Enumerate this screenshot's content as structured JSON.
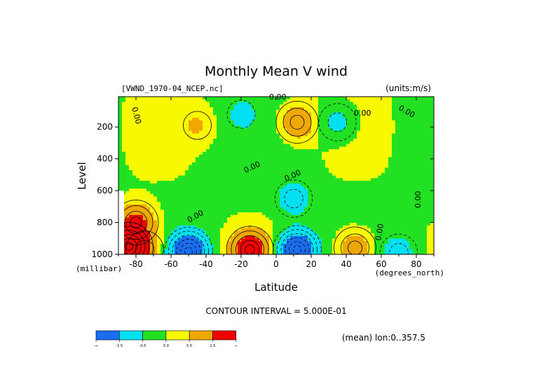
{
  "chart_data": {
    "type": "heatmap",
    "title": "Monthly Mean V wind",
    "dataset": "[VWND_1970-04_NCEP.nc]",
    "units": "(units:m/s)",
    "xlabel": "Latitude",
    "xunits": "(degrees_north)",
    "ylabel": "Level",
    "yunits": "(millibar)",
    "x_ticks": [
      -80,
      -60,
      -40,
      -20,
      0,
      20,
      40,
      60,
      80
    ],
    "x_tick_labels": [
      "-80",
      "-60",
      "-40",
      "-20",
      "0",
      "20",
      "40",
      "60",
      "80"
    ],
    "y_ticks": [
      200,
      400,
      600,
      800,
      1000
    ],
    "y_tick_labels": [
      "200",
      "400",
      "600",
      "800",
      "1000"
    ],
    "xlim": [
      -90,
      90
    ],
    "ylim": [
      1000,
      10
    ],
    "contour_interval": "CONTOUR INTERVAL = 5.000E-01",
    "contour_labels": [
      "0.00",
      "0.00",
      "0.00",
      "0.00",
      "0.00",
      "0.00",
      "0.00",
      "0.00",
      "0.00"
    ],
    "footer_note": "(mean) lon:0..357.5",
    "colorbar": {
      "bins": [
        "#1a6cf0",
        "#00e0f0",
        "#22e022",
        "#f8f800",
        "#f0a800",
        "#f00000"
      ],
      "labels": [
        "-∞",
        "-1.5",
        "-0.5",
        "0.0",
        "0.5",
        "1.5",
        "∞"
      ]
    },
    "features": [
      {
        "lat": -84,
        "p": 950,
        "v": 3.0
      },
      {
        "lat": -80,
        "p": 800,
        "v": 2.0
      },
      {
        "lat": -75,
        "p": 970,
        "v": 1.2
      },
      {
        "lat": -50,
        "p": 980,
        "v": -3.0
      },
      {
        "lat": -45,
        "p": 190,
        "v": 0.6
      },
      {
        "lat": -15,
        "p": 970,
        "v": 2.5
      },
      {
        "lat": -20,
        "p": 120,
        "v": -0.4
      },
      {
        "lat": 12,
        "p": 970,
        "v": -3.0
      },
      {
        "lat": 10,
        "p": 650,
        "v": -0.9
      },
      {
        "lat": 12,
        "p": 170,
        "v": 1.4
      },
      {
        "lat": 35,
        "p": 170,
        "v": -0.8
      },
      {
        "lat": 45,
        "p": 960,
        "v": 1.3
      },
      {
        "lat": 70,
        "p": 990,
        "v": -0.8
      }
    ]
  }
}
